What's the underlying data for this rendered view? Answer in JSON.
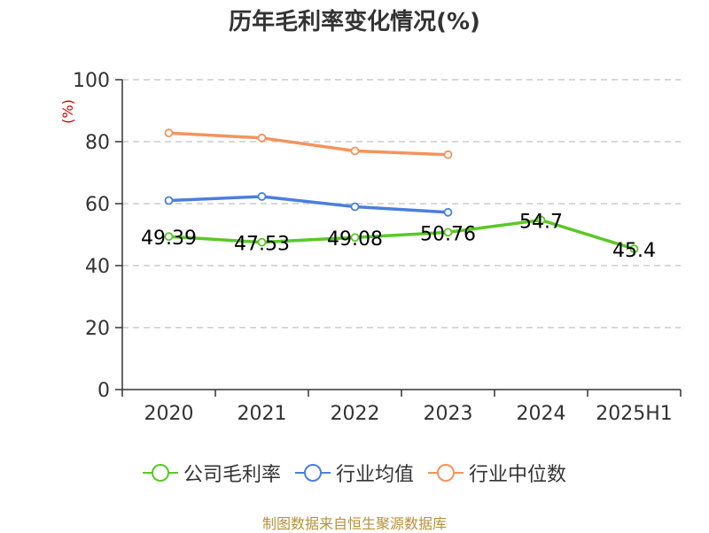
{
  "title": "历年毛利率变化情况(%)",
  "source": "制图数据来自恒生聚源数据库",
  "chart_data": {
    "type": "line",
    "title": "历年毛利率变化情况(%)",
    "ylabel": "(%)",
    "ylim": [
      0,
      100
    ],
    "yticks": [
      0,
      20,
      40,
      60,
      80,
      100
    ],
    "grid": true,
    "legend_position": "bottom",
    "categories": [
      "2020",
      "2021",
      "2022",
      "2023",
      "2024",
      "2025H1"
    ],
    "series": [
      {
        "name": "公司毛利率",
        "color": "#5ac825",
        "values": [
          49.39,
          47.53,
          49.08,
          50.76,
          54.7,
          45.4
        ],
        "labels": [
          "49.39",
          "47.53",
          "49.08",
          "50.76",
          "54.7",
          "45.4"
        ]
      },
      {
        "name": "行业均值",
        "color": "#4a7fdc",
        "values": [
          61,
          62.3,
          59,
          57.2,
          null,
          null
        ]
      },
      {
        "name": "行业中位数",
        "color": "#f5935a",
        "values": [
          82.8,
          81.2,
          77,
          75.8,
          null,
          null
        ]
      }
    ]
  }
}
